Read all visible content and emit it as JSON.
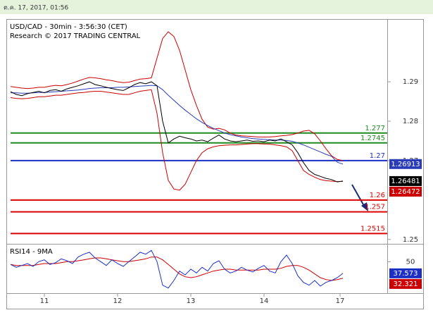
{
  "header": {
    "timestamp": "ต.ค. 17, 2017, 01:56"
  },
  "chart_data": [
    {
      "type": "line",
      "title": "USD/CAD - 30min - 3:56:30 (CET)",
      "subtitle": "Research © 2017 TRADING CENTRAL",
      "x": [
        0,
        1,
        2,
        3,
        4,
        5,
        6,
        7,
        8,
        9,
        10,
        11,
        12,
        13,
        14,
        15,
        16,
        17,
        18,
        19,
        20,
        21,
        22,
        23,
        24,
        25,
        26,
        27,
        28,
        29,
        30,
        31,
        32,
        33,
        34,
        35,
        36,
        37,
        38,
        39,
        40,
        41,
        42,
        43,
        44,
        45,
        46,
        47,
        48,
        49,
        50,
        51,
        52,
        53,
        54,
        55,
        56,
        57,
        58,
        59
      ],
      "xlim": [
        0,
        67
      ],
      "ylim": [
        1.2496,
        1.3045
      ],
      "yticks": [
        1.29,
        1.28,
        1.27,
        1.25
      ],
      "series": [
        {
          "color": "#cc0000",
          "values": [
            1.2888,
            1.2886,
            1.2884,
            1.2883,
            1.2884,
            1.2886,
            1.2886,
            1.2889,
            1.2891,
            1.289,
            1.2893,
            1.2897,
            1.2902,
            1.2907,
            1.2911,
            1.291,
            1.2908,
            1.2905,
            1.2903,
            1.29,
            1.2898,
            1.2899,
            1.2903,
            1.2907,
            1.2908,
            1.291,
            1.296,
            1.301,
            1.3027,
            1.3015,
            1.298,
            1.293,
            1.288,
            1.284,
            1.2805,
            1.2785,
            1.278,
            1.2782,
            1.2778,
            1.277,
            1.2765,
            1.2763,
            1.2762,
            1.2761,
            1.276,
            1.276,
            1.276,
            1.2761,
            1.2763,
            1.2764,
            1.2766,
            1.277,
            1.2775,
            1.2777,
            1.2768,
            1.275,
            1.273,
            1.2712,
            1.2703,
            1.27
          ]
        },
        {
          "color": "#cc0000",
          "tag": true,
          "values": [
            1.286,
            1.2858,
            1.2857,
            1.2858,
            1.286,
            1.2862,
            1.2862,
            1.2864,
            1.2866,
            1.2866,
            1.2868,
            1.287,
            1.2872,
            1.2873,
            1.2875,
            1.2876,
            1.2876,
            1.2874,
            1.2872,
            1.287,
            1.2868,
            1.2868,
            1.2872,
            1.2876,
            1.2878,
            1.288,
            1.282,
            1.272,
            1.265,
            1.2628,
            1.2625,
            1.264,
            1.267,
            1.27,
            1.272,
            1.273,
            1.2735,
            1.2738,
            1.2739,
            1.274,
            1.274,
            1.2741,
            1.2742,
            1.2743,
            1.2743,
            1.2742,
            1.2742,
            1.274,
            1.2738,
            1.2735,
            1.2725,
            1.27,
            1.2675,
            1.2665,
            1.2658,
            1.2652,
            1.2649,
            1.2648,
            1.2647,
            1.26472
          ]
        },
        {
          "color": "#2a3cb8",
          "tag": true,
          "values": [
            1.2872,
            1.2872,
            1.2871,
            1.2871,
            1.2872,
            1.2873,
            1.2873,
            1.2874,
            1.2875,
            1.2876,
            1.2877,
            1.2878,
            1.2879,
            1.2881,
            1.2883,
            1.2884,
            1.2885,
            1.2885,
            1.2885,
            1.2886,
            1.2886,
            1.2887,
            1.2888,
            1.2889,
            1.289,
            1.2891,
            1.289,
            1.288,
            1.2866,
            1.2853,
            1.284,
            1.2828,
            1.2817,
            1.2806,
            1.2797,
            1.2789,
            1.2782,
            1.2776,
            1.277,
            1.2766,
            1.2763,
            1.276,
            1.2758,
            1.2756,
            1.2755,
            1.2754,
            1.2753,
            1.2752,
            1.2752,
            1.2751,
            1.2749,
            1.2745,
            1.274,
            1.2734,
            1.2728,
            1.2722,
            1.2716,
            1.2711,
            1.2696,
            1.26913
          ]
        },
        {
          "color": "#000000",
          "tag": true,
          "values": [
            1.2875,
            1.2868,
            1.2865,
            1.287,
            1.2873,
            1.2876,
            1.2872,
            1.2878,
            1.288,
            1.2876,
            1.2882,
            1.2886,
            1.289,
            1.2895,
            1.29,
            1.2893,
            1.289,
            1.2886,
            1.2883,
            1.288,
            1.2878,
            1.2885,
            1.2893,
            1.2898,
            1.2895,
            1.29,
            1.289,
            1.28,
            1.2745,
            1.2755,
            1.2762,
            1.2758,
            1.2755,
            1.275,
            1.2752,
            1.2748,
            1.2757,
            1.2765,
            1.2755,
            1.275,
            1.2748,
            1.275,
            1.2752,
            1.2749,
            1.275,
            1.2748,
            1.2752,
            1.275,
            1.2755,
            1.2748,
            1.274,
            1.272,
            1.2695,
            1.2675,
            1.2665,
            1.266,
            1.2655,
            1.2652,
            1.2646,
            1.26481
          ]
        }
      ],
      "levels": [
        {
          "value": 1.277,
          "color": "#1f8a1f"
        },
        {
          "value": 1.2745,
          "color": "#1f8a1f"
        },
        {
          "value": 1.27,
          "color": "#1c2fc4"
        },
        {
          "value": 1.26,
          "color": "#dd0000"
        },
        {
          "value": 1.257,
          "color": "#dd0000"
        },
        {
          "value": 1.2515,
          "color": "#dd0000"
        }
      ]
    },
    {
      "type": "line",
      "title": "RSI14 - 9MA",
      "x": [
        0,
        1,
        2,
        3,
        4,
        5,
        6,
        7,
        8,
        9,
        10,
        11,
        12,
        13,
        14,
        15,
        16,
        17,
        18,
        19,
        20,
        21,
        22,
        23,
        24,
        25,
        26,
        27,
        28,
        29,
        30,
        31,
        32,
        33,
        34,
        35,
        36,
        37,
        38,
        39,
        40,
        41,
        42,
        43,
        44,
        45,
        46,
        47,
        48,
        49,
        50,
        51,
        52,
        53,
        54,
        55,
        56,
        57,
        58,
        59
      ],
      "xlim": [
        0,
        67
      ],
      "xticks": [
        {
          "value": 6,
          "label": "11"
        },
        {
          "value": 19,
          "label": "12"
        },
        {
          "value": 32,
          "label": "13"
        },
        {
          "value": 45,
          "label": "14"
        },
        {
          "value": 58.5,
          "label": "17"
        }
      ],
      "ylim": [
        18,
        66
      ],
      "yticks": [
        50
      ],
      "series": [
        {
          "color": "#cc0000",
          "tag": true,
          "values": [
            47,
            46,
            46,
            46,
            46,
            47,
            48,
            48,
            48,
            49,
            50,
            50,
            51,
            52,
            53,
            54,
            54,
            53,
            52,
            51,
            50,
            50,
            51,
            52,
            53,
            55,
            55,
            52,
            47,
            42,
            37,
            34,
            33,
            34,
            36,
            38,
            40,
            41,
            42,
            42,
            41,
            41,
            41,
            41,
            41,
            42,
            42,
            42,
            43,
            45,
            46,
            46,
            44,
            41,
            37,
            33,
            31,
            30,
            31,
            32.321
          ]
        },
        {
          "color": "#1c2fc4",
          "tag": true,
          "values": [
            47,
            44,
            46,
            48,
            45,
            50,
            52,
            47,
            49,
            53,
            51,
            48,
            55,
            58,
            60,
            54,
            50,
            46,
            52,
            48,
            45,
            50,
            55,
            60,
            58,
            62,
            50,
            25,
            22,
            30,
            40,
            36,
            42,
            38,
            44,
            40,
            48,
            51,
            42,
            38,
            40,
            44,
            41,
            39,
            43,
            46,
            40,
            38,
            50,
            57,
            48,
            35,
            28,
            25,
            30,
            24,
            28,
            30,
            33,
            37.573
          ]
        }
      ]
    }
  ]
}
